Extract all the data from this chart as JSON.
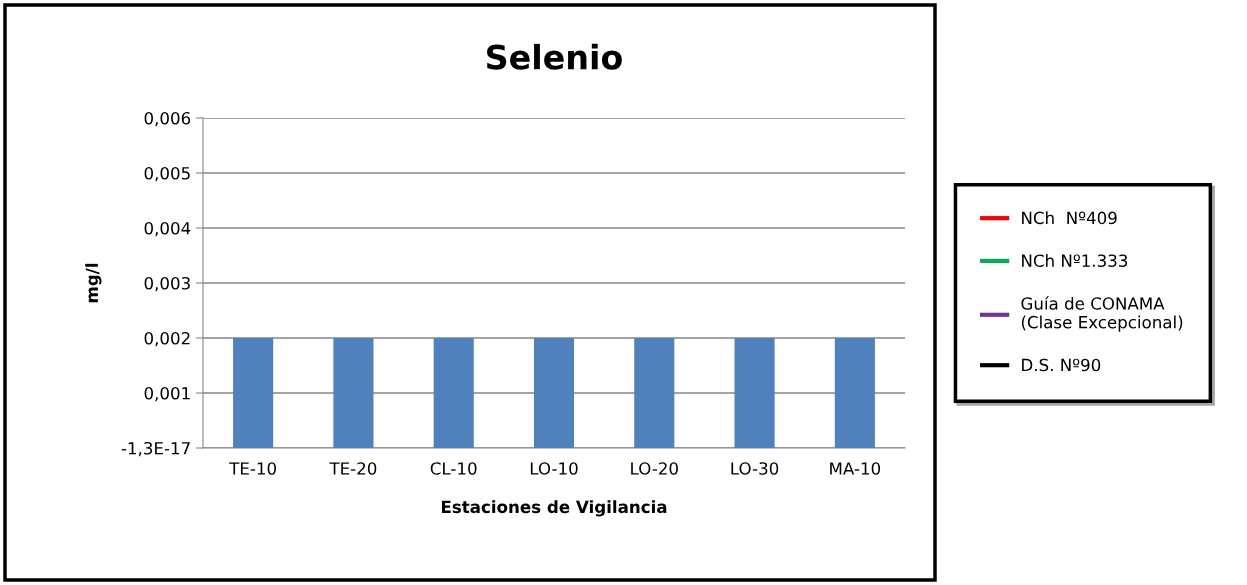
{
  "chart_data": {
    "type": "bar",
    "title": "Selenio",
    "xlabel": "Estaciones de Vigilancia",
    "ylabel": "mg/l",
    "categories": [
      "TE-10",
      "TE-20",
      "CL-10",
      "LO-10",
      "LO-20",
      "LO-30",
      "MA-10"
    ],
    "series": [
      {
        "color": "#4f81bd",
        "values": [
          0.002,
          0.002,
          0.002,
          0.002,
          0.002,
          0.002,
          0.002
        ]
      },
      {
        "type": "line",
        "name": "NCh  Nº409",
        "color": "#ff0000",
        "values": [
          null,
          null,
          null,
          null,
          null,
          null,
          null
        ]
      },
      {
        "type": "line",
        "name": "NCh Nº1.333",
        "color": "#00b050",
        "values": [
          null,
          null,
          null,
          null,
          null,
          null,
          null
        ]
      },
      {
        "type": "line",
        "name": "Guía de CONAMA\n(Clase Excepcional)",
        "color": "#7030a0",
        "values": [
          null,
          null,
          null,
          null,
          null,
          null,
          null
        ]
      },
      {
        "type": "line",
        "name": "D.S. Nº90",
        "color": "#000000",
        "values": [
          null,
          null,
          null,
          null,
          null,
          null,
          null
        ]
      }
    ],
    "ylim": [
      0,
      0.006
    ],
    "yticks": [
      {
        "value": 0,
        "label": "-1,3E-17"
      },
      {
        "value": 0.001,
        "label": "0,001"
      },
      {
        "value": 0.002,
        "label": "0,002"
      },
      {
        "value": 0.003,
        "label": "0,003"
      },
      {
        "value": 0.004,
        "label": "0,004"
      },
      {
        "value": 0.005,
        "label": "0,005"
      },
      {
        "value": 0.006,
        "label": "0,006"
      }
    ],
    "grid": "y",
    "legend": "right"
  }
}
